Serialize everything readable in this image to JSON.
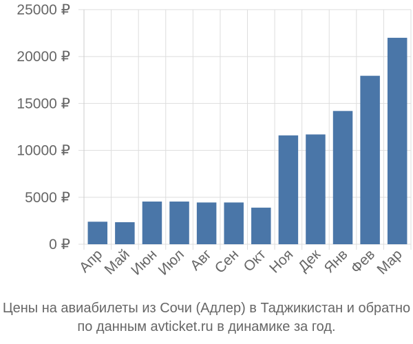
{
  "caption": {
    "line1": "Цены на авиабилеты из Сочи (Адлер) в Таджикистан и обратно",
    "line2": "по данным avticket.ru в динамике за год."
  },
  "colors": {
    "bar": "#4a76a8",
    "grid": "#dddddd",
    "text": "#666666"
  },
  "chart_data": {
    "type": "bar",
    "categories": [
      "Апр",
      "Май",
      "Июн",
      "Июл",
      "Авг",
      "Сен",
      "Окт",
      "Ноя",
      "Дек",
      "Янв",
      "Фев",
      "Мар"
    ],
    "values": [
      2400,
      2350,
      4550,
      4550,
      4450,
      4450,
      3900,
      11600,
      11700,
      14200,
      17950,
      22000
    ],
    "ylim": [
      0,
      25000
    ],
    "yticks": [
      0,
      5000,
      10000,
      15000,
      20000,
      25000
    ],
    "ytick_labels": [
      "0 ₽",
      "5000 ₽",
      "10000 ₽",
      "15000 ₽",
      "20000 ₽",
      "25000 ₽"
    ],
    "grid": true,
    "xlabel": "",
    "ylabel": "",
    "title": ""
  }
}
